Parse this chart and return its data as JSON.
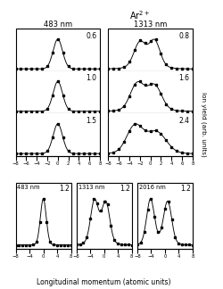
{
  "title": "Ar$^{2+}$",
  "xlabel": "Longitudinal momentum (atomic units)",
  "ylabel": "Ion yield (arb. units)",
  "top_left_label": "483 nm",
  "top_right_label": "1313 nm",
  "panels_top_left_intensities": [
    "0.6",
    "1.0",
    "1.5"
  ],
  "panels_top_right_intensities": [
    "0.8",
    "1.6",
    "2.4"
  ],
  "panels_bottom_labels": [
    "483 nm",
    "1313 nm",
    "2016 nm"
  ],
  "panels_bottom_intensities": [
    "1.2",
    "1.2",
    "1.2"
  ],
  "xrange": [
    -8,
    8
  ],
  "xticks_top": [
    -8,
    -6,
    -4,
    -2,
    0,
    2,
    4,
    6,
    8
  ],
  "xticks_bot": [
    -8,
    -4,
    0,
    4,
    8
  ]
}
